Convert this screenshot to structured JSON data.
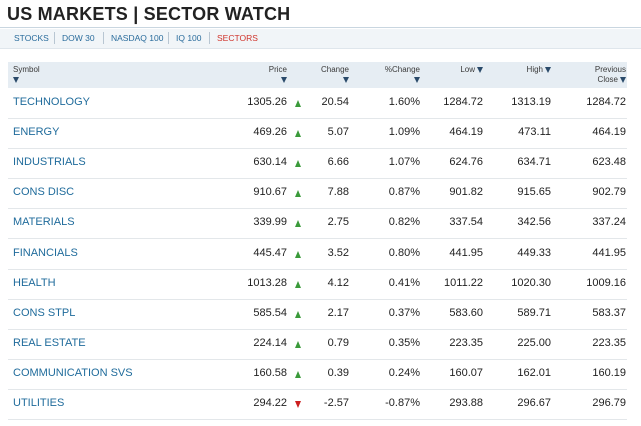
{
  "header": {
    "title": "US MARKETS | SECTOR WATCH"
  },
  "tabs": [
    {
      "label": "STOCKS"
    },
    {
      "label": "DOW 30"
    },
    {
      "label": "NASDAQ 100"
    },
    {
      "label": "IQ 100"
    },
    {
      "label": "SECTORS",
      "active": true
    }
  ],
  "table": {
    "columns": [
      "Symbol",
      "Price",
      "Change",
      "%Change",
      "Low",
      "High",
      "Previous Close"
    ],
    "rows": [
      [
        "TECHNOLOGY",
        "1305.26",
        "20.54",
        "1.60%",
        "1284.72",
        "1313.19",
        "1284.72"
      ],
      [
        "ENERGY",
        "469.26",
        "5.07",
        "1.09%",
        "464.19",
        "473.11",
        "464.19"
      ],
      [
        "INDUSTRIALS",
        "630.14",
        "6.66",
        "1.07%",
        "624.76",
        "634.71",
        "623.48"
      ],
      [
        "CONS DISC",
        "910.67",
        "7.88",
        "0.87%",
        "901.82",
        "915.65",
        "902.79"
      ],
      [
        "MATERIALS",
        "339.99",
        "2.75",
        "0.82%",
        "337.54",
        "342.56",
        "337.24"
      ],
      [
        "FINANCIALS",
        "445.47",
        "3.52",
        "0.80%",
        "441.95",
        "449.33",
        "441.95"
      ],
      [
        "HEALTH",
        "1013.28",
        "4.12",
        "0.41%",
        "1011.22",
        "1020.30",
        "1009.16"
      ],
      [
        "CONS STPL",
        "585.54",
        "2.17",
        "0.37%",
        "583.60",
        "589.71",
        "583.37"
      ],
      [
        "REAL ESTATE",
        "224.14",
        "0.79",
        "0.35%",
        "223.35",
        "225.00",
        "223.35"
      ],
      [
        "COMMUNICATION SVS",
        "160.58",
        "0.39",
        "0.24%",
        "160.07",
        "162.01",
        "160.19"
      ],
      [
        "UTILITIES",
        "294.22",
        "-2.57",
        "-0.87%",
        "293.88",
        "296.67",
        "296.79"
      ]
    ]
  }
}
